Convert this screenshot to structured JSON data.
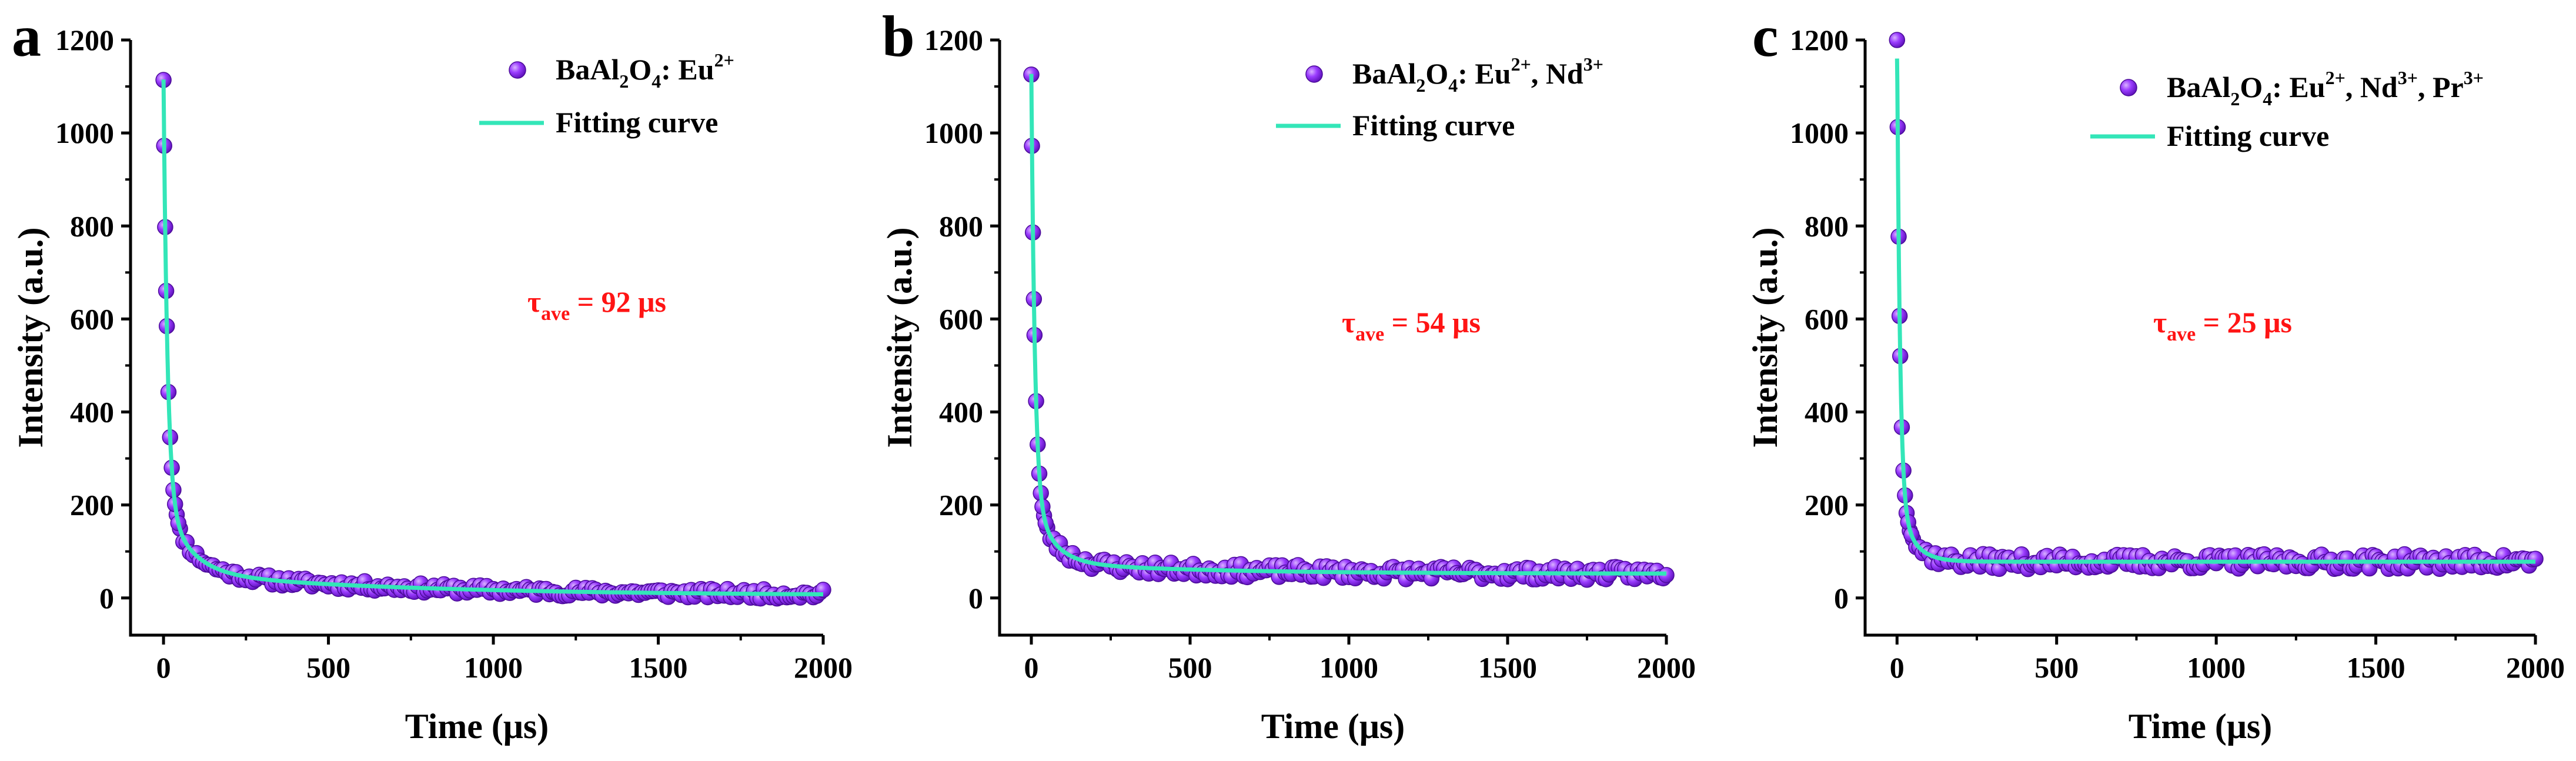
{
  "colors": {
    "data_point": "#8a2be2",
    "data_point_highlight": "#c58cff",
    "fit_curve": "#33e6b8",
    "tau_text": "#ff1414",
    "axis": "#000000"
  },
  "icons": {
    "marker": "sphere-marker-icon",
    "fit": "line-segment-icon"
  },
  "chart_data": [
    {
      "panel_letter": "a",
      "type": "scatter",
      "xlabel": "Time (μs)",
      "ylabel": "Intensity (a.u.)",
      "xlim": [
        -100,
        2000
      ],
      "ylim": [
        -80,
        1200
      ],
      "xticks": [
        "0",
        "500",
        "1000",
        "1500",
        "2000"
      ],
      "yticks": [
        "0",
        "200",
        "400",
        "600",
        "800",
        "1000",
        "1200"
      ],
      "xtick_values": [
        0,
        500,
        1000,
        1500,
        2000
      ],
      "ytick_values": [
        0,
        200,
        400,
        600,
        800,
        1000,
        1200
      ],
      "legend": {
        "series_label": {
          "base": "BaAl",
          "sub1": "2",
          "mid": "O",
          "sub2": "4",
          "rest": ": Eu",
          "sup1": "2+",
          "tail": ""
        },
        "fit_label": "Fitting curve"
      },
      "annotation": {
        "symbol": "τ",
        "subscript": "ave",
        "value": " = 92 μs"
      },
      "series": [
        {
          "name": "BaAl2O4: Eu2+ (data)",
          "style": "points",
          "x_start": 0,
          "x_step": 10,
          "count": 201,
          "decay": {
            "a1": 900,
            "t1": 12,
            "a2": 160,
            "t2": 75,
            "a3": 50,
            "t3": 700,
            "c": 5
          },
          "noise_amplitude": 10,
          "seed": 11
        },
        {
          "name": "Fitting curve",
          "style": "line",
          "decay": {
            "a1": 900,
            "t1": 12,
            "a2": 160,
            "t2": 75,
            "a3": 50,
            "t3": 700,
            "c": 5
          }
        }
      ]
    },
    {
      "panel_letter": "b",
      "type": "scatter",
      "xlabel": "Time (μs)",
      "ylabel": "Intensity (a.u.)",
      "xlim": [
        -100,
        2000
      ],
      "ylim": [
        -80,
        1200
      ],
      "xticks": [
        "0",
        "500",
        "1000",
        "1500",
        "2000"
      ],
      "yticks": [
        "0",
        "200",
        "400",
        "600",
        "800",
        "1000",
        "1200"
      ],
      "xtick_values": [
        0,
        500,
        1000,
        1500,
        2000
      ],
      "ytick_values": [
        0,
        200,
        400,
        600,
        800,
        1000,
        1200
      ],
      "legend": {
        "series_label": {
          "base": "BaAl",
          "sub1": "2",
          "mid": "O",
          "sub2": "4",
          "rest": ": Eu",
          "sup1": "2+",
          "tail": ", Nd",
          "sup2": "3+"
        },
        "fit_label": "Fitting curve"
      },
      "annotation": {
        "symbol": "τ",
        "subscript": "ave",
        "value": " = 54 μs"
      },
      "series": [
        {
          "name": "BaAl2O4: Eu2+, Nd3+ (data)",
          "style": "points",
          "x_start": 0,
          "x_step": 10,
          "count": 201,
          "decay": {
            "a1": 900,
            "t1": 11,
            "a2": 150,
            "t2": 60,
            "a3": 25,
            "t3": 500,
            "c": 52
          },
          "noise_amplitude": 14,
          "seed": 23
        },
        {
          "name": "Fitting curve",
          "style": "line",
          "decay": {
            "a1": 900,
            "t1": 11,
            "a2": 150,
            "t2": 60,
            "a3": 25,
            "t3": 500,
            "c": 52
          }
        }
      ]
    },
    {
      "panel_letter": "c",
      "type": "scatter",
      "xlabel": "Time (μs)",
      "ylabel": "Intensity (a.u.)",
      "xlim": [
        -100,
        2000
      ],
      "ylim": [
        -80,
        1200
      ],
      "xticks": [
        "0",
        "500",
        "1000",
        "1500",
        "2000"
      ],
      "yticks": [
        "0",
        "200",
        "400",
        "600",
        "800",
        "1000",
        "1200"
      ],
      "xtick_values": [
        0,
        500,
        1000,
        1500,
        2000
      ],
      "ytick_values": [
        0,
        200,
        400,
        600,
        800,
        1000,
        1200
      ],
      "legend": {
        "series_label": {
          "base": "BaAl",
          "sub1": "2",
          "mid": "O",
          "sub2": "4",
          "rest": ": Eu",
          "sup1": "2+",
          "tail": ", Nd",
          "sup2": "3+",
          "tail2": ", Pr",
          "sup3": "3+"
        },
        "fit_label": "Fitting curve"
      },
      "annotation": {
        "symbol": "τ",
        "subscript": "ave",
        "value": " = 25 μs"
      },
      "series": [
        {
          "name": "BaAl2O4: Eu2+, Nd3+, Pr3+ (data)",
          "style": "points",
          "x_start": 0,
          "x_step": 10,
          "count": 201,
          "decay": {
            "a1": 1000,
            "t1": 9,
            "a2": 140,
            "t2": 45,
            "a3": 0,
            "t3": 1,
            "c": 78
          },
          "noise_amplitude": 16,
          "seed": 37
        },
        {
          "name": "Fitting curve",
          "style": "line",
          "decay": {
            "a1": 1000,
            "t1": 9,
            "a2": 140,
            "t2": 45,
            "a3": 0,
            "t3": 1,
            "c": 78
          }
        }
      ]
    }
  ]
}
